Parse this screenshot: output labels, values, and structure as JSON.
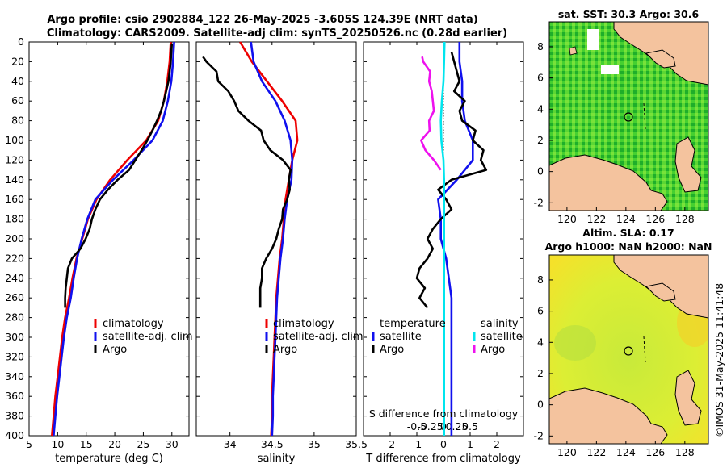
{
  "title": {
    "line1": "Argo profile: csio 2902884_122 26-May-2025 -3.605S 124.39E (NRT data)",
    "line2": "Climatology: CARS2009. Satellite-adj clim: synTS_20250526.nc (0.28d earlier)"
  },
  "colors": {
    "climatology": "#ee0000",
    "satellite": "#1010ee",
    "argo": "#000000",
    "sal_sat": "#00e5ee",
    "sal_argo": "#ee11ee",
    "land": "#f4c39e"
  },
  "depth_ticks": [
    0,
    20,
    40,
    60,
    80,
    100,
    120,
    140,
    160,
    180,
    200,
    220,
    240,
    260,
    280,
    300,
    320,
    340,
    360,
    380,
    400
  ],
  "chart_data": [
    {
      "type": "line",
      "panel": "temperature",
      "xlabel": "temperature (deg C)",
      "xlim": [
        5,
        33
      ],
      "xticks": [
        5,
        10,
        15,
        20,
        25,
        30
      ],
      "ylim": [
        400,
        0
      ],
      "legend": [
        "climatology",
        "satellite-adj. clim",
        "Argo"
      ],
      "series": [
        {
          "name": "climatology",
          "color": "#ee0000",
          "depth": [
            0,
            20,
            40,
            60,
            80,
            100,
            120,
            140,
            160,
            180,
            200,
            220,
            240,
            260,
            280,
            300,
            320,
            340,
            360,
            380,
            400
          ],
          "values": [
            29.8,
            29.6,
            29.2,
            28.6,
            27.6,
            25.5,
            22.2,
            19.2,
            16.8,
            15.3,
            14.3,
            13.3,
            12.6,
            12.0,
            11.3,
            10.8,
            10.4,
            10.0,
            9.6,
            9.3,
            9.0
          ]
        },
        {
          "name": "satellite-adj. clim",
          "color": "#1010ee",
          "depth": [
            0,
            20,
            40,
            60,
            80,
            100,
            120,
            140,
            160,
            180,
            200,
            220,
            240,
            260,
            280,
            300,
            320,
            340,
            360,
            380,
            400
          ],
          "values": [
            30.4,
            30.2,
            29.9,
            29.3,
            28.4,
            26.6,
            23.3,
            19.7,
            16.6,
            15.2,
            14.2,
            13.4,
            12.8,
            12.3,
            11.6,
            11.1,
            10.7,
            10.3,
            9.9,
            9.6,
            9.3
          ]
        },
        {
          "name": "Argo",
          "color": "#000000",
          "depth": [
            2,
            10,
            20,
            30,
            40,
            50,
            60,
            70,
            80,
            90,
            100,
            110,
            120,
            130,
            140,
            150,
            160,
            170,
            180,
            190,
            200,
            210,
            220,
            230,
            240,
            250,
            260,
            270
          ],
          "values": [
            30.0,
            29.9,
            29.8,
            29.6,
            29.4,
            29.0,
            28.6,
            28.1,
            27.4,
            26.6,
            25.7,
            24.7,
            23.6,
            22.5,
            20.5,
            18.8,
            17.4,
            16.6,
            16.0,
            15.6,
            14.9,
            14.0,
            12.5,
            11.8,
            11.6,
            11.4,
            11.3,
            11.3
          ]
        }
      ]
    },
    {
      "type": "line",
      "panel": "salinity",
      "xlabel": "salinity",
      "xlim": [
        33.6,
        35.5
      ],
      "xticks": [
        34,
        34.5,
        35,
        35.5
      ],
      "xticklabels": [
        "34",
        "34.5",
        "35",
        "35.5"
      ],
      "ylim": [
        400,
        0
      ],
      "legend": [
        "climatology",
        "satellite-adj. clim",
        "Argo"
      ],
      "series": [
        {
          "name": "climatology",
          "color": "#ee0000",
          "depth": [
            0,
            20,
            40,
            60,
            80,
            100,
            120,
            140,
            160,
            180,
            200,
            220,
            240,
            260,
            280,
            300,
            320,
            340,
            360,
            380,
            400
          ],
          "values": [
            34.12,
            34.26,
            34.44,
            34.62,
            34.78,
            34.8,
            34.74,
            34.7,
            34.66,
            34.64,
            34.62,
            34.59,
            34.57,
            34.55,
            34.54,
            34.53,
            34.52,
            34.51,
            34.5,
            34.5,
            34.49
          ]
        },
        {
          "name": "satellite-adj. clim",
          "color": "#1010ee",
          "depth": [
            0,
            20,
            40,
            60,
            80,
            100,
            120,
            140,
            160,
            180,
            200,
            220,
            240,
            260,
            280,
            300,
            320,
            340,
            360,
            380,
            400
          ],
          "values": [
            34.25,
            34.28,
            34.38,
            34.54,
            34.65,
            34.72,
            34.74,
            34.73,
            34.68,
            34.65,
            34.63,
            34.6,
            34.58,
            34.56,
            34.55,
            34.54,
            34.53,
            34.52,
            34.51,
            34.51,
            34.5
          ]
        },
        {
          "name": "Argo",
          "color": "#000000",
          "depth": [
            15,
            20,
            30,
            40,
            50,
            60,
            70,
            80,
            90,
            100,
            110,
            120,
            130,
            140,
            150,
            160,
            170,
            180,
            190,
            200,
            210,
            220,
            230,
            240,
            250,
            260,
            270
          ],
          "values": [
            33.68,
            33.72,
            33.84,
            33.86,
            33.98,
            34.05,
            34.1,
            34.22,
            34.37,
            34.4,
            34.48,
            34.63,
            34.72,
            34.7,
            34.71,
            34.68,
            34.63,
            34.62,
            34.58,
            34.55,
            34.5,
            34.43,
            34.38,
            34.38,
            34.36,
            34.36,
            34.36
          ]
        }
      ]
    },
    {
      "type": "line",
      "panel": "difference",
      "xlabel": "T difference from climatology",
      "xlabel_top": "S difference from climatology",
      "xlim": [
        -3,
        3
      ],
      "xticks": [
        -2,
        -1,
        0,
        1,
        2
      ],
      "s_ticks": [
        -0.5,
        -0.25,
        0,
        0.25,
        0.5
      ],
      "s_ticklabels": [
        "-0.5",
        "-0.25",
        "0",
        "0.25",
        "0.5"
      ],
      "ylim": [
        400,
        0
      ],
      "legend_temperature": {
        "title": "temperature",
        "entries": [
          "satellite",
          "Argo"
        ]
      },
      "legend_salinity": {
        "title": "salinity",
        "entries": [
          "satellite",
          "Argo"
        ]
      },
      "series": [
        {
          "name": "T satellite",
          "color": "#1010ee",
          "depth": [
            0,
            20,
            40,
            60,
            80,
            100,
            120,
            140,
            160,
            180,
            200,
            220,
            240,
            260,
            280,
            300,
            320,
            340,
            360,
            380,
            400
          ],
          "values": [
            0.6,
            0.6,
            0.7,
            0.7,
            0.8,
            1.1,
            1.1,
            0.5,
            -0.2,
            -0.1,
            -0.1,
            0.1,
            0.2,
            0.3,
            0.3,
            0.3,
            0.3,
            0.3,
            0.3,
            0.3,
            0.3
          ]
        },
        {
          "name": "T Argo",
          "color": "#000000",
          "depth": [
            10,
            20,
            30,
            40,
            50,
            60,
            70,
            80,
            90,
            100,
            110,
            120,
            130,
            140,
            150,
            160,
            170,
            180,
            190,
            200,
            210,
            220,
            230,
            240,
            250,
            260,
            270
          ],
          "values": [
            0.3,
            0.4,
            0.5,
            0.6,
            0.4,
            0.8,
            0.6,
            0.7,
            1.2,
            1.1,
            1.5,
            1.4,
            1.6,
            0.3,
            -0.2,
            0.1,
            0.3,
            -0.1,
            -0.4,
            -0.6,
            -0.4,
            -0.6,
            -0.9,
            -1.0,
            -0.7,
            -0.9,
            -0.6
          ]
        },
        {
          "name": "S satellite",
          "color": "#00e5ee",
          "depth": [
            0,
            20,
            40,
            60,
            80,
            100,
            120,
            140,
            160,
            180,
            200,
            220,
            240,
            260,
            280,
            300,
            320,
            340,
            360,
            380,
            400
          ],
          "values": [
            0.02,
            0.01,
            0.0,
            -0.03,
            -0.05,
            -0.04,
            0.0,
            0.01,
            0.01,
            0.01,
            0.01,
            0.01,
            0.01,
            0.01,
            0.01,
            0.01,
            0.01,
            0.01,
            0.01,
            0.01,
            0.01
          ]
        },
        {
          "name": "S Argo",
          "color": "#ee11ee",
          "depth": [
            15,
            20,
            30,
            40,
            50,
            60,
            70,
            80,
            90,
            100,
            110,
            120,
            130
          ],
          "values": [
            -0.4,
            -0.38,
            -0.25,
            -0.27,
            -0.22,
            -0.2,
            -0.18,
            -0.27,
            -0.26,
            -0.42,
            -0.34,
            -0.18,
            -0.05
          ]
        }
      ]
    }
  ],
  "maps": [
    {
      "title": "sat. SST: 30.3 Argo: 30.6",
      "xticks": [
        "120",
        "122",
        "124",
        "126",
        "128"
      ],
      "yticks": [
        "8",
        "6",
        "4",
        "2",
        "0",
        "-2"
      ]
    },
    {
      "title_line1": "Altim. SLA: 0.17",
      "title_line2": "Argo h1000: NaN h2000: NaN",
      "xticks": [
        "120",
        "122",
        "124",
        "126",
        "128"
      ],
      "yticks": [
        "8",
        "6",
        "4",
        "2",
        "0",
        "-2"
      ]
    }
  ],
  "watermark": "©IMOS 31-May-2025 11:41:48"
}
